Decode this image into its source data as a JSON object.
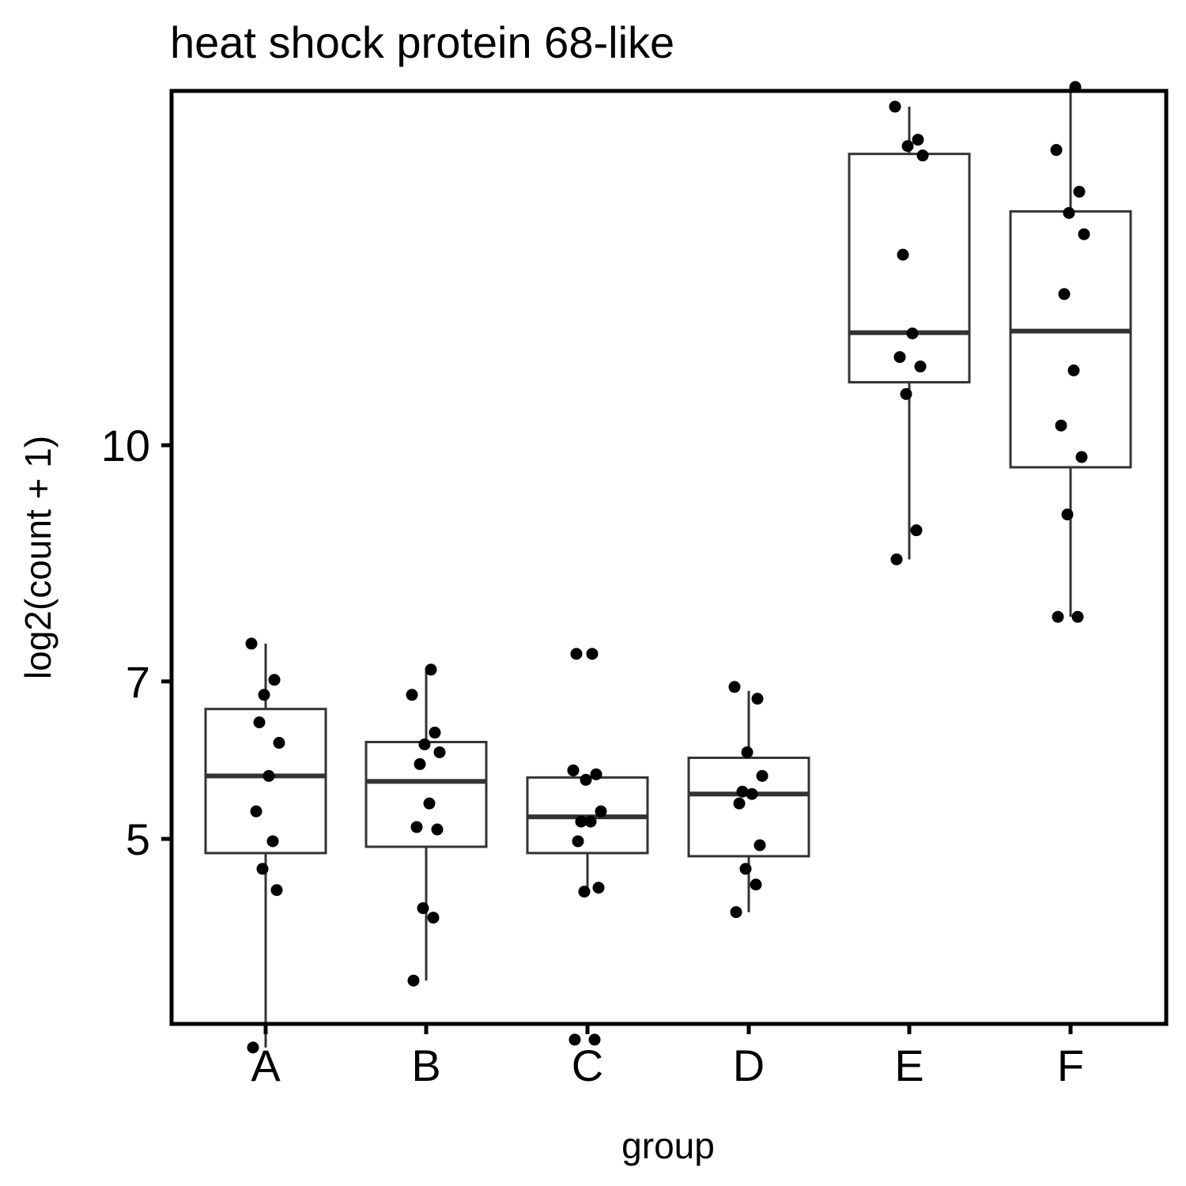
{
  "chart_data": {
    "type": "boxplot",
    "title": "heat shock protein 68-like",
    "xlabel": "group",
    "ylabel": "log2(count + 1)",
    "categories": [
      "A",
      "B",
      "C",
      "D",
      "E",
      "F"
    ],
    "yticks": [
      5,
      7,
      10
    ],
    "ylim": [
      2.65,
      14.5
    ],
    "grid": false,
    "legend": "none",
    "colors": {
      "box": "#333333",
      "point": "#000000",
      "frame": "#000000"
    },
    "boxes": [
      {
        "group": "A",
        "lower": 2.35,
        "q1": 4.82,
        "median": 5.8,
        "q3": 6.65,
        "upper": 7.48
      },
      {
        "group": "B",
        "lower": 3.2,
        "q1": 4.9,
        "median": 5.73,
        "q3": 6.23,
        "upper": 7.13
      },
      {
        "group": "C",
        "lower": 4.33,
        "q1": 4.82,
        "median": 5.28,
        "q3": 5.78,
        "upper": 5.78
      },
      {
        "group": "D",
        "lower": 4.07,
        "q1": 4.78,
        "median": 5.57,
        "q3": 6.03,
        "upper": 6.88
      },
      {
        "group": "E",
        "lower": 8.55,
        "q1": 10.8,
        "median": 11.43,
        "q3": 13.7,
        "upper": 14.3
      },
      {
        "group": "F",
        "lower": 7.82,
        "q1": 9.72,
        "median": 11.45,
        "q3": 12.97,
        "upper": 14.55
      }
    ],
    "points": [
      {
        "group": "A",
        "values": [
          2.35,
          4.97,
          4.62,
          4.35,
          5.35,
          5.8,
          6.48,
          6.22,
          6.83,
          7.02,
          7.48
        ]
      },
      {
        "group": "B",
        "values": [
          3.2,
          4.0,
          4.12,
          5.12,
          5.15,
          5.45,
          5.95,
          6.1,
          6.2,
          6.35,
          6.83,
          7.15
        ]
      },
      {
        "group": "C",
        "values": [
          2.45,
          2.45,
          4.33,
          4.38,
          4.97,
          5.22,
          5.22,
          5.35,
          5.75,
          5.82,
          5.87,
          7.35,
          7.35
        ]
      },
      {
        "group": "D",
        "values": [
          4.07,
          4.42,
          4.62,
          4.92,
          5.45,
          5.57,
          5.6,
          5.8,
          6.1,
          6.78,
          6.93
        ]
      },
      {
        "group": "E",
        "values": [
          8.55,
          8.92,
          10.65,
          11.0,
          11.12,
          11.42,
          12.42,
          13.68,
          13.8,
          13.88,
          14.3
        ]
      },
      {
        "group": "F",
        "values": [
          7.82,
          7.82,
          9.12,
          9.85,
          10.25,
          10.95,
          11.92,
          12.68,
          12.95,
          13.22,
          13.75,
          14.55
        ]
      }
    ]
  }
}
